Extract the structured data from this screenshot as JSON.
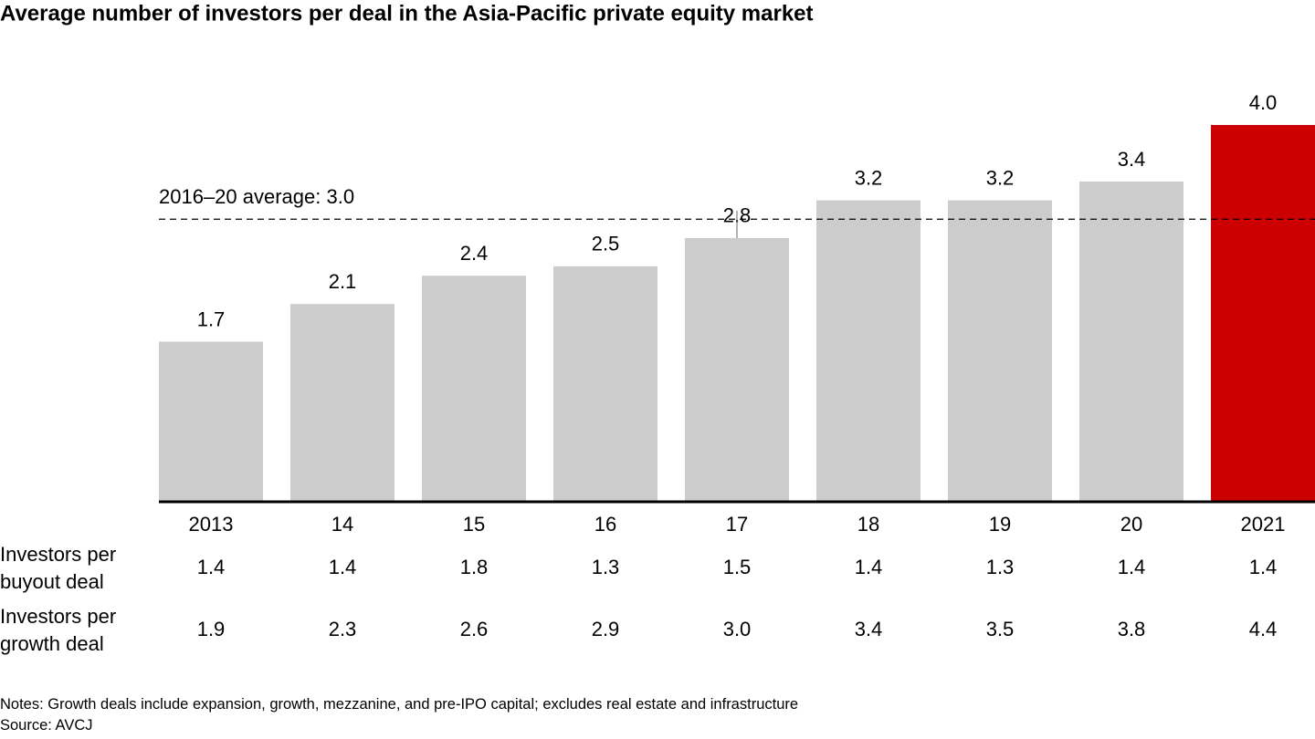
{
  "chart_data": {
    "type": "bar",
    "title": "Average number of investors per deal in the Asia-Pacific private equity market",
    "categories": [
      "2013",
      "14",
      "15",
      "16",
      "17",
      "18",
      "19",
      "20",
      "2021"
    ],
    "values": [
      1.7,
      2.1,
      2.4,
      2.5,
      2.8,
      3.2,
      3.2,
      3.4,
      4.0
    ],
    "value_labels": [
      "1.7",
      "2.1",
      "2.4",
      "2.5",
      "2.8",
      "3.2",
      "3.2",
      "3.4",
      "4.0"
    ],
    "colors": [
      "#cccccc",
      "#cccccc",
      "#cccccc",
      "#cccccc",
      "#cccccc",
      "#cccccc",
      "#cccccc",
      "#cccccc",
      "#cc0000"
    ],
    "reference_line": {
      "value": 3.0,
      "label": "2016–20 average: 3.0"
    },
    "table": {
      "rows": [
        {
          "label": "Investors per buyout deal",
          "values": [
            "1.4",
            "1.4",
            "1.8",
            "1.3",
            "1.5",
            "1.4",
            "1.3",
            "1.4",
            "1.4"
          ]
        },
        {
          "label": "Investors per growth deal",
          "values": [
            "1.9",
            "2.3",
            "2.6",
            "2.9",
            "3.0",
            "3.4",
            "3.5",
            "3.8",
            "4.4"
          ]
        }
      ]
    },
    "notes": "Notes: Growth deals include expansion, growth, mezzanine, and pre-IPO capital; excludes real estate and infrastructure",
    "source": "Source: AVCJ"
  }
}
